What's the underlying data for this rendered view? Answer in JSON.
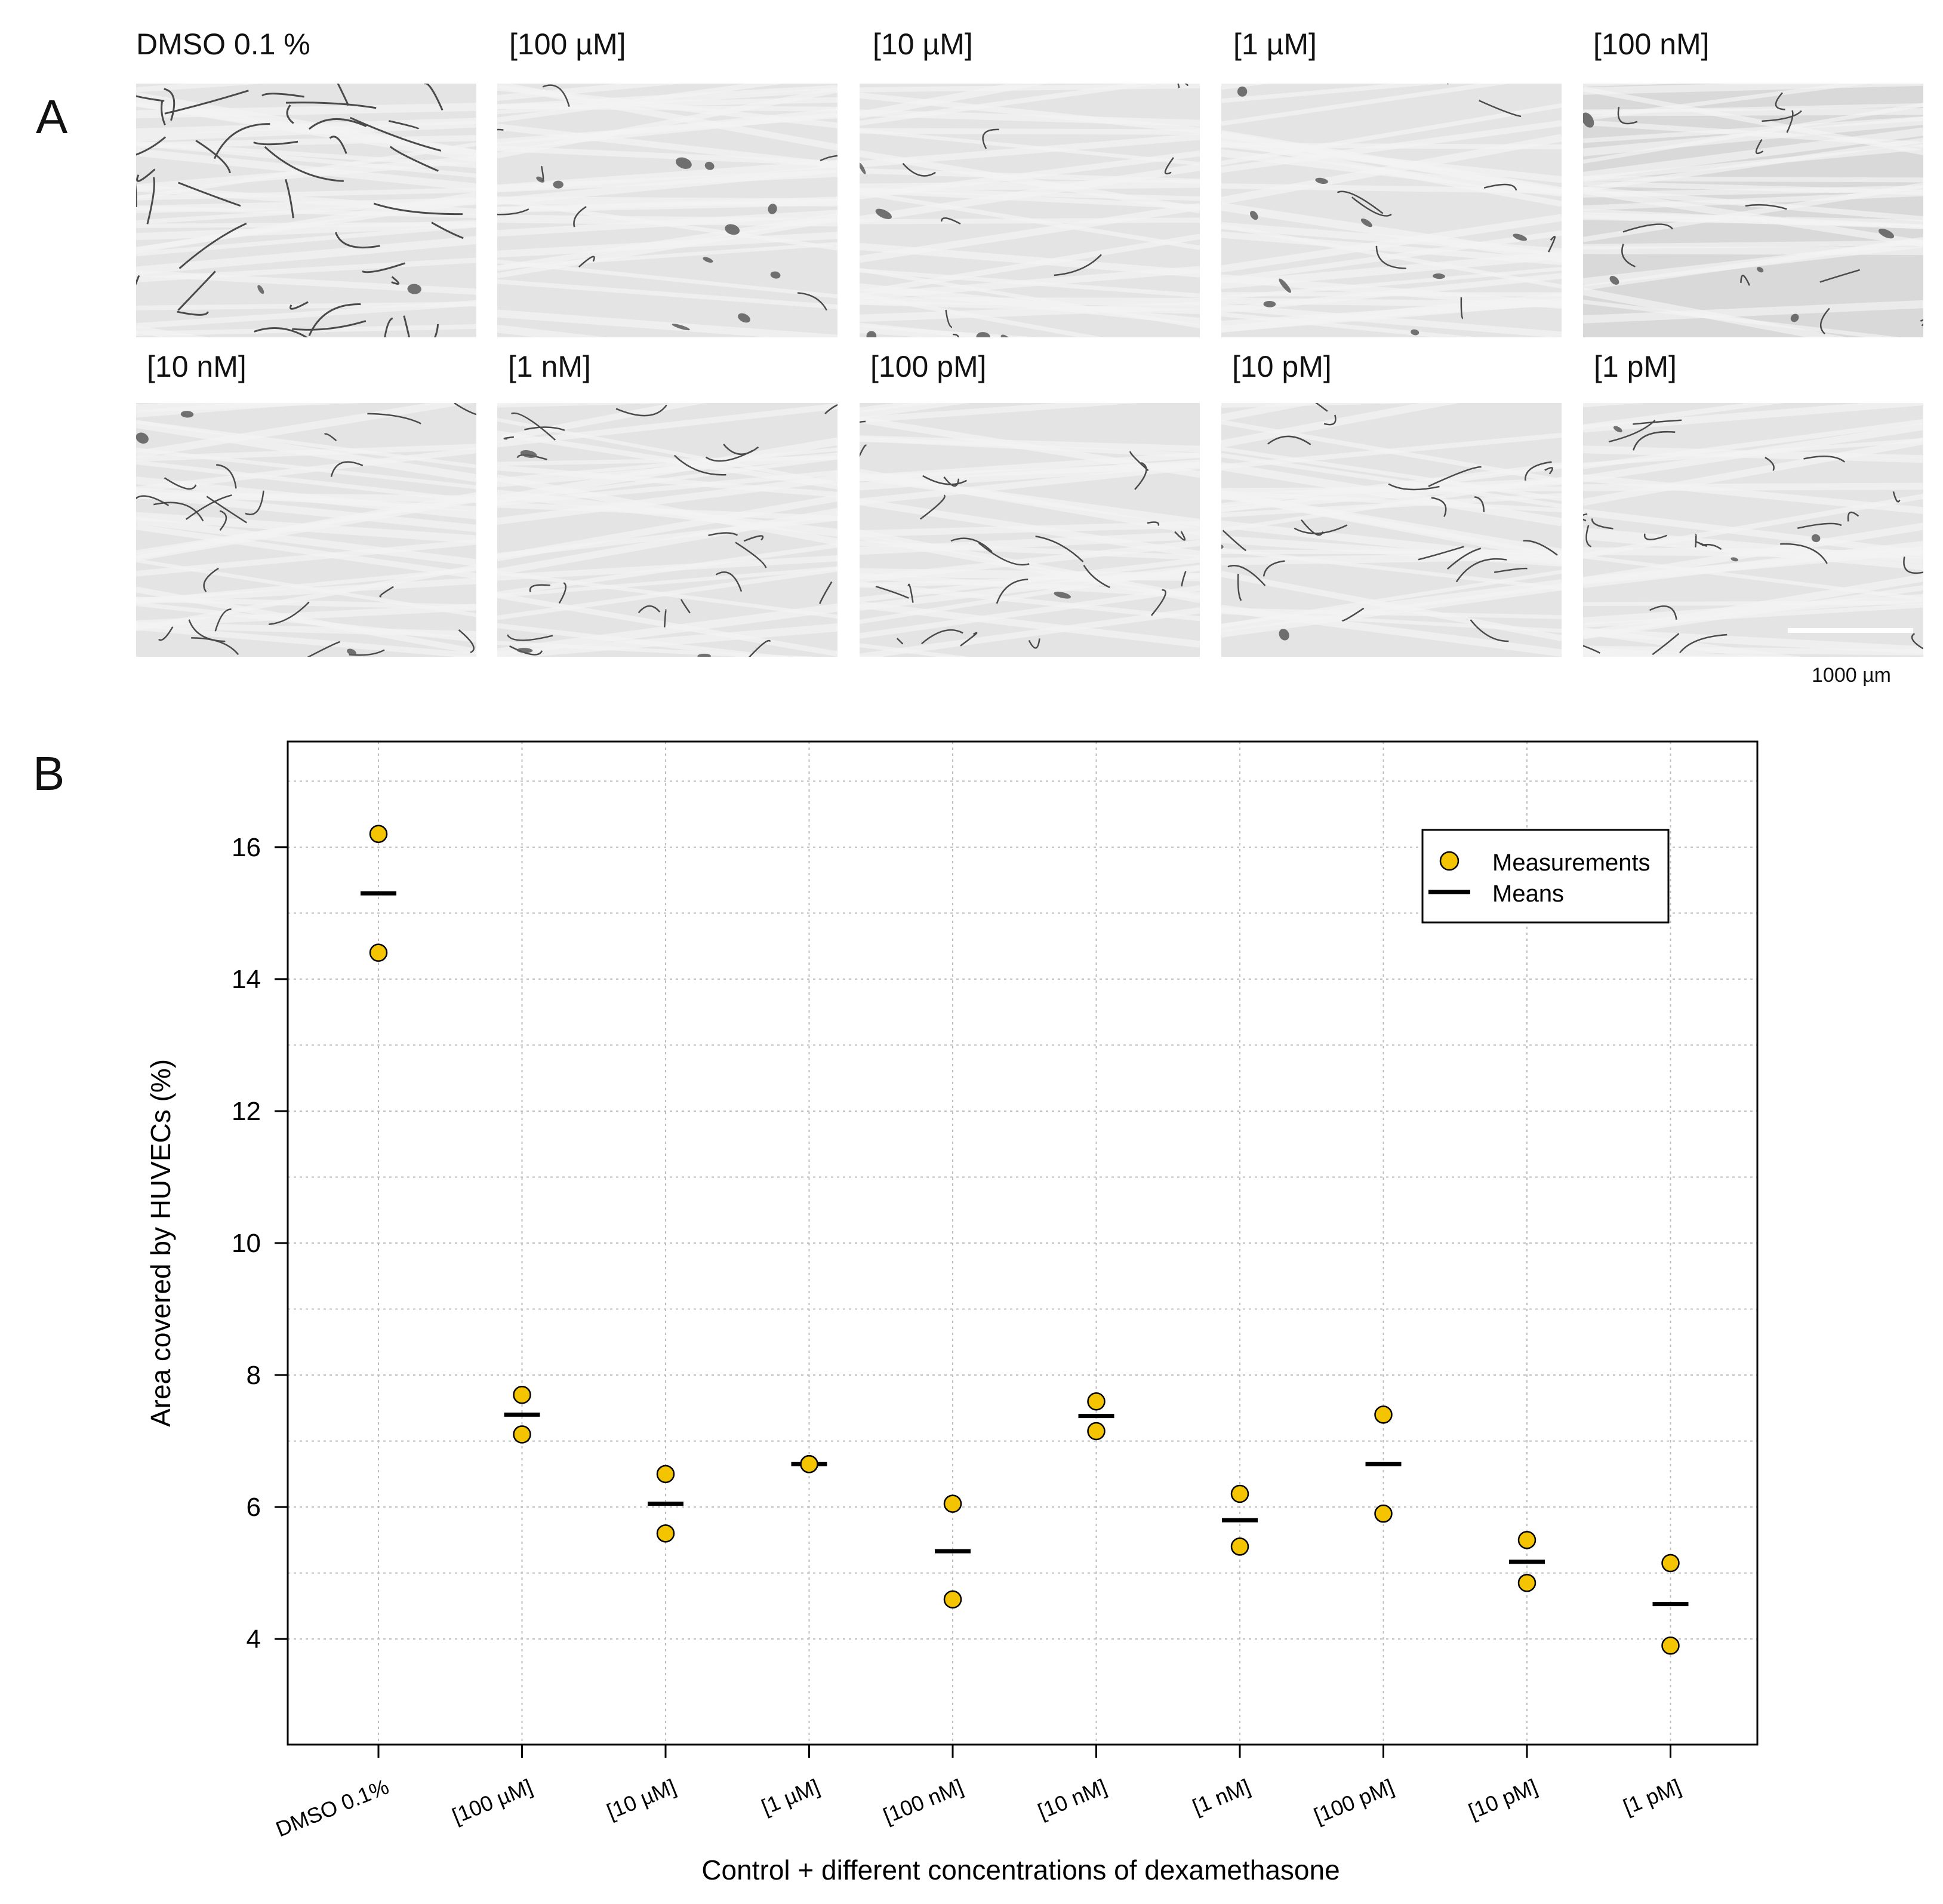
{
  "panel_a": {
    "letter": "A",
    "images": [
      {
        "label": "DMSO 0.1 %",
        "style": "dense-network"
      },
      {
        "label": "[100 µM]",
        "style": "sparse-cells"
      },
      {
        "label": "[10 µM]",
        "style": "sparse-cells"
      },
      {
        "label": "[1 µM]",
        "style": "sparse-cells"
      },
      {
        "label": "[100 nM]",
        "style": "few-strands"
      },
      {
        "label": "[10 nM]",
        "style": "strands"
      },
      {
        "label": "[1 nM]",
        "style": "strands"
      },
      {
        "label": "[100 pM]",
        "style": "strands"
      },
      {
        "label": "[10 pM]",
        "style": "strands"
      },
      {
        "label": "[1 pM]",
        "style": "strands"
      }
    ],
    "scale_bar_label": "1000 µm"
  },
  "panel_b": {
    "letter": "B"
  },
  "chart_data": {
    "type": "scatter",
    "title": "",
    "xlabel": "Control + different concentrations of dexamethasone",
    "ylabel": "Area covered by HUVECs (%)",
    "categories": [
      "DMSO 0.1%",
      "[100 µM]",
      "[10 µM]",
      "[1 µM]",
      "[100 nM]",
      "[10 nM]",
      "[1 nM]",
      "[100 pM]",
      "[10 pM]",
      "[1 pM]"
    ],
    "ylim": [
      2.4,
      17.6
    ],
    "yticks": [
      4,
      6,
      8,
      10,
      12,
      14,
      16
    ],
    "grid": true,
    "series": [
      {
        "name": "Measurements",
        "marker": "circle",
        "color": "#F5C400",
        "values": [
          [
            16.2,
            14.4
          ],
          [
            7.7,
            7.1
          ],
          [
            6.5,
            5.6
          ],
          [
            6.65,
            6.65
          ],
          [
            6.05,
            4.6
          ],
          [
            7.6,
            7.15
          ],
          [
            6.2,
            5.4
          ],
          [
            7.4,
            5.9
          ],
          [
            5.5,
            4.85
          ],
          [
            5.15,
            3.9
          ]
        ]
      },
      {
        "name": "Means",
        "marker": "dash",
        "color": "#000000",
        "values": [
          15.3,
          7.4,
          6.05,
          6.65,
          5.33,
          7.38,
          5.8,
          6.65,
          5.17,
          4.53
        ]
      }
    ],
    "legend": {
      "position": "top-right",
      "entries": [
        "Measurements",
        "Means"
      ]
    }
  }
}
